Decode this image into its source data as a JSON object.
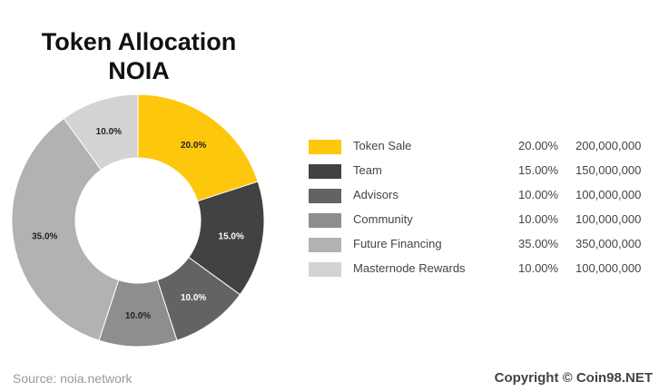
{
  "title": {
    "line1": "Token Allocation",
    "line2": "NOIA"
  },
  "chart_data": {
    "type": "pie",
    "title": "Token Allocation NOIA",
    "donut": true,
    "categories": [
      "Token Sale",
      "Team",
      "Advisors",
      "Community",
      "Future Financing",
      "Masternode Rewards"
    ],
    "values": [
      20.0,
      15.0,
      10.0,
      10.0,
      35.0,
      10.0
    ],
    "slice_labels": [
      "20.0%",
      "15.0%",
      "10.0%",
      "10.0%",
      "35.0%",
      "10.0%"
    ],
    "colors": [
      "#fdc70c",
      "#424242",
      "#636363",
      "#8e8e8e",
      "#b2b2b2",
      "#d3d3d3"
    ],
    "label_colors": [
      "#222222",
      "#ffffff",
      "#ffffff",
      "#222222",
      "#222222",
      "#222222"
    ],
    "legend_placement": "right"
  },
  "legend": [
    {
      "name": "Token Sale",
      "pct": "20.00%",
      "amount": "200,000,000",
      "color": "#fdc70c"
    },
    {
      "name": "Team",
      "pct": "15.00%",
      "amount": "150,000,000",
      "color": "#424242"
    },
    {
      "name": "Advisors",
      "pct": "10.00%",
      "amount": "100,000,000",
      "color": "#636363"
    },
    {
      "name": "Community",
      "pct": "10.00%",
      "amount": "100,000,000",
      "color": "#8e8e8e"
    },
    {
      "name": "Future Financing",
      "pct": "35.00%",
      "amount": "350,000,000",
      "color": "#b2b2b2"
    },
    {
      "name": "Masternode Rewards",
      "pct": "10.00%",
      "amount": "100,000,000",
      "color": "#d3d3d3"
    }
  ],
  "footer": {
    "source": "Source: noia.network",
    "copyright": "Copyright © Coin98.NET"
  }
}
